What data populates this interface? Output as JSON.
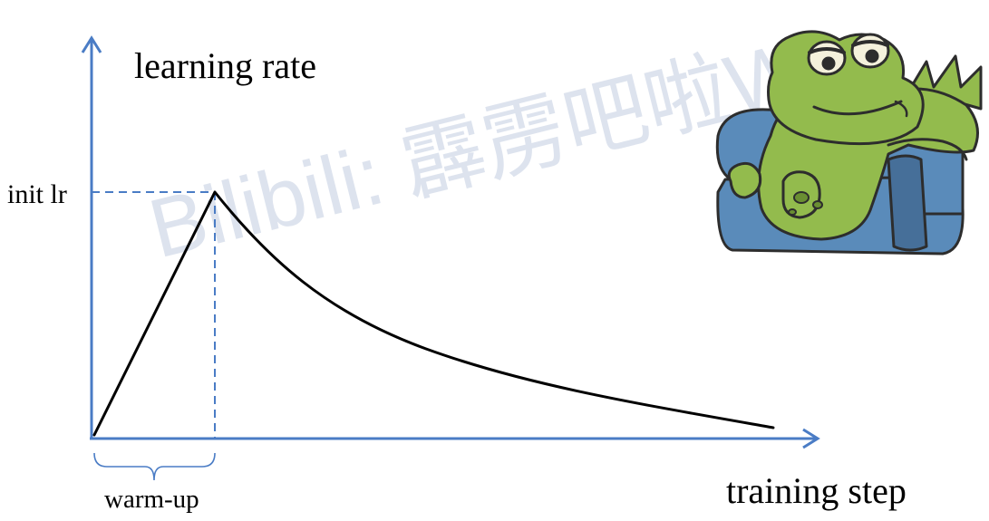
{
  "diagram": {
    "y_axis_label": "learning rate",
    "x_axis_label": "training step",
    "peak_label": "init lr",
    "warmup_label": "warm-up",
    "watermark_text": "Bilibili: 霹雳吧啦W"
  },
  "schedule": {
    "phases": [
      "warm-up",
      "decay"
    ],
    "warmup_shape": "linear increase",
    "decay_shape": "smooth decrease"
  },
  "colors": {
    "axis": "#4a7cc5",
    "curve": "#000000",
    "guide": "#4a7cc5",
    "watermark": "#dde3ee",
    "frog_skin": "#93bb4d",
    "frog_dark": "#6a8f32",
    "chair": "#5a8bba",
    "chair_dark": "#466f99",
    "outline": "#2d2d2d"
  },
  "illustration": {
    "icon": "frog-on-armchair"
  }
}
